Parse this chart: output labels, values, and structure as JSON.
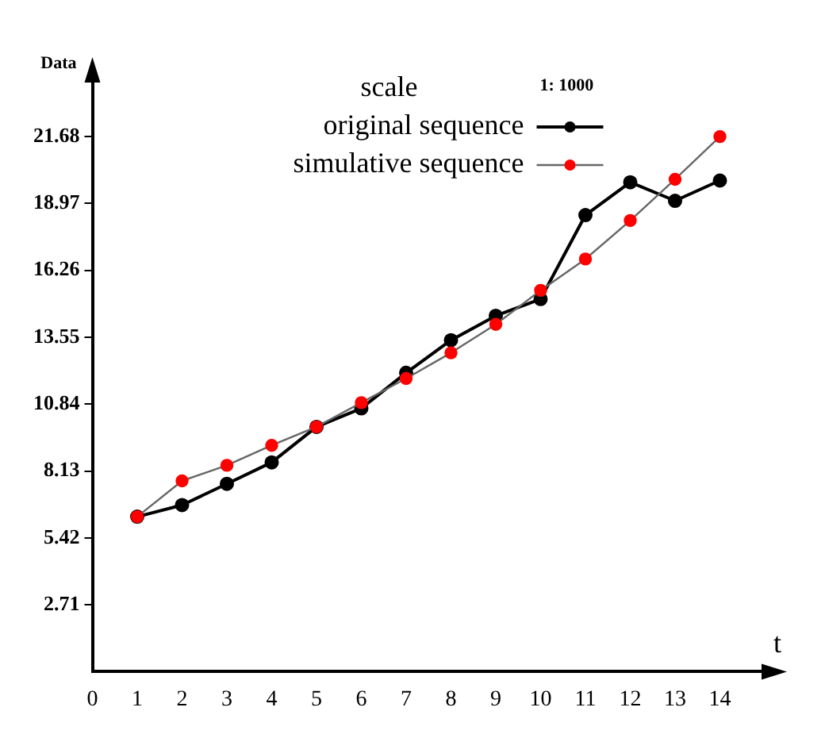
{
  "chart_data": {
    "type": "line",
    "xlabel": "t",
    "ylabel": "Data",
    "legend_title": "scale",
    "annotations": [
      "1: 1000"
    ],
    "x": [
      1,
      2,
      3,
      4,
      5,
      6,
      7,
      8,
      9,
      10,
      11,
      12,
      13,
      14
    ],
    "series": [
      {
        "name": "original sequence",
        "color": "#000000",
        "values": [
          6.28,
          6.75,
          7.61,
          8.48,
          9.92,
          10.67,
          12.11,
          13.43,
          14.42,
          15.1,
          18.5,
          19.83,
          19.08,
          19.9
        ]
      },
      {
        "name": "simulative sequence",
        "color": "#ff0000",
        "values": [
          6.28,
          7.73,
          8.36,
          9.17,
          9.92,
          10.9,
          11.88,
          12.92,
          14.07,
          15.45,
          16.72,
          18.28,
          19.95,
          21.68
        ]
      }
    ],
    "xlim": [
      0,
      15
    ],
    "xticks": [
      0,
      1,
      2,
      3,
      4,
      5,
      6,
      7,
      8,
      9,
      10,
      11,
      12,
      13,
      14
    ],
    "ylim": [
      0,
      24
    ],
    "yticks": [
      2.71,
      5.42,
      8.13,
      10.84,
      13.55,
      16.26,
      18.97,
      21.68
    ],
    "grid": false,
    "legend": "top left",
    "marker": "circle",
    "line_style": "solid"
  }
}
